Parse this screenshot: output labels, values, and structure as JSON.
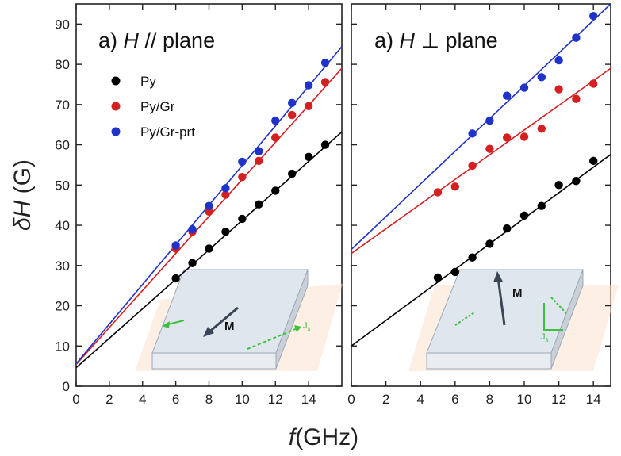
{
  "chart_data": [
    {
      "type": "scatter",
      "title_prefix": "a) ",
      "title_symbol": "H",
      "title_rest": " // plane",
      "xlabel_italic": "f",
      "xlabel_rest": "(GHz)",
      "ylabel_prefix": "δ",
      "ylabel_italic": "H",
      "ylabel_rest": " (G)",
      "xlim": [
        0,
        16
      ],
      "ylim": [
        0,
        95
      ],
      "xticks": [
        0,
        2,
        4,
        6,
        8,
        10,
        12,
        14
      ],
      "yticks": [
        0,
        10,
        20,
        30,
        40,
        50,
        60,
        70,
        80,
        90
      ],
      "grid": false,
      "legend": "top-left",
      "series": [
        {
          "name": "Py",
          "color": "#000000",
          "x": [
            6,
            7,
            8,
            9,
            10,
            11,
            12,
            13,
            14,
            15
          ],
          "y": [
            26.8,
            30.6,
            34.2,
            38.4,
            41.6,
            45.2,
            48.6,
            52.8,
            57.0,
            60.0
          ],
          "fit": {
            "x": [
              0,
              16
            ],
            "y": [
              4.6,
              63.2
            ]
          }
        },
        {
          "name": "Py/Gr",
          "color": "#d42020",
          "x": [
            6,
            7,
            8,
            9,
            10,
            11,
            12,
            13,
            14,
            15
          ],
          "y": [
            34.2,
            38.4,
            43.4,
            47.6,
            52.0,
            56.0,
            61.8,
            67.4,
            69.6,
            75.6
          ],
          "fit": {
            "x": [
              0,
              16
            ],
            "y": [
              5.4,
              79.0
            ]
          }
        },
        {
          "name": "Py/Gr-prt",
          "color": "#1f33c8",
          "x": [
            6,
            7,
            8,
            9,
            10,
            11,
            12,
            13,
            14,
            15
          ],
          "y": [
            35.0,
            39.0,
            44.8,
            49.2,
            55.8,
            58.4,
            66.0,
            70.4,
            74.8,
            80.4
          ],
          "fit": {
            "x": [
              0,
              16
            ],
            "y": [
              5.6,
              84.4
            ]
          }
        }
      ],
      "inset": {
        "label_M": "M",
        "label_J": "J",
        "label_J_sub": "s"
      }
    },
    {
      "type": "scatter",
      "title_prefix": "a) ",
      "title_symbol": "H",
      "title_rest": " ⊥ plane",
      "xlim": [
        0,
        15
      ],
      "ylim": [
        0,
        95
      ],
      "xticks": [
        0,
        2,
        4,
        6,
        8,
        10,
        12,
        14
      ],
      "yticks": [
        0,
        10,
        20,
        30,
        40,
        50,
        60,
        70,
        80,
        90
      ],
      "grid": false,
      "series": [
        {
          "name": "Py",
          "color": "#000000",
          "x": [
            5,
            6,
            7,
            8,
            9,
            10,
            11,
            12,
            13,
            14
          ],
          "y": [
            27.0,
            28.4,
            32.0,
            35.4,
            39.2,
            42.4,
            44.8,
            50.0,
            51.0,
            56.0
          ],
          "fit": {
            "x": [
              0,
              15
            ],
            "y": [
              10.0,
              57.6
            ]
          }
        },
        {
          "name": "Py/Gr",
          "color": "#d42020",
          "x": [
            5,
            6,
            7,
            8,
            9,
            10,
            11,
            12,
            13,
            14
          ],
          "y": [
            48.2,
            49.6,
            54.8,
            59.0,
            61.8,
            62.0,
            64.0,
            73.8,
            71.4,
            75.2
          ],
          "fit": {
            "x": [
              0,
              15
            ],
            "y": [
              33.0,
              79.0
            ]
          }
        },
        {
          "name": "Py/Gr-prt",
          "color": "#1f33c8",
          "x": [
            7,
            8,
            9,
            10,
            11,
            12,
            13,
            14
          ],
          "y": [
            62.8,
            66.0,
            72.2,
            74.2,
            76.8,
            81.0,
            86.6,
            92.0
          ],
          "fit": {
            "x": [
              0,
              15
            ],
            "y": [
              34.0,
              95.0
            ]
          }
        }
      ],
      "inset": {
        "label_M": "M",
        "label_J": "J",
        "label_J_sub": "s"
      }
    }
  ]
}
